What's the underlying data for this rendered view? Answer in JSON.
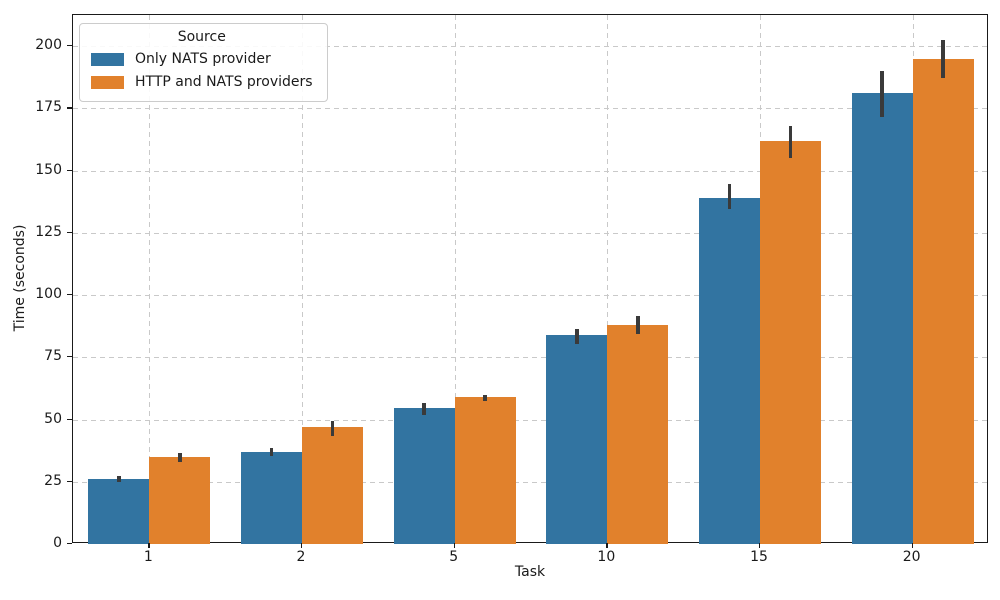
{
  "chart_data": {
    "type": "bar",
    "title": "",
    "xlabel": "Task",
    "ylabel": "Time (seconds)",
    "categories": [
      "1",
      "2",
      "5",
      "10",
      "15",
      "20"
    ],
    "series": [
      {
        "name": "Only NATS provider",
        "color": "#3274a1",
        "values": [
          26,
          37,
          54.5,
          84,
          139,
          181
        ],
        "ci_low": [
          25,
          35.5,
          52,
          80.5,
          134.5,
          171.5
        ],
        "ci_high": [
          27.5,
          38.5,
          56.5,
          86.5,
          144.5,
          190
        ]
      },
      {
        "name": "HTTP and NATS providers",
        "color": "#e1812c",
        "values": [
          35,
          47,
          59,
          88,
          162,
          195
        ],
        "ci_low": [
          33,
          43.5,
          57.5,
          84.5,
          155,
          187
        ],
        "ci_high": [
          36.5,
          49.5,
          60,
          91.5,
          168,
          202.5
        ]
      }
    ],
    "ylim": [
      0,
      212.5
    ],
    "yticks": [
      0,
      25,
      50,
      75,
      100,
      125,
      150,
      175,
      200
    ],
    "legend_title": "Source",
    "legend_position": "upper left",
    "grid": "dashed horizontal and vertical",
    "error_color": "#3a3a3a",
    "grid_color": "#c9c9c9"
  }
}
